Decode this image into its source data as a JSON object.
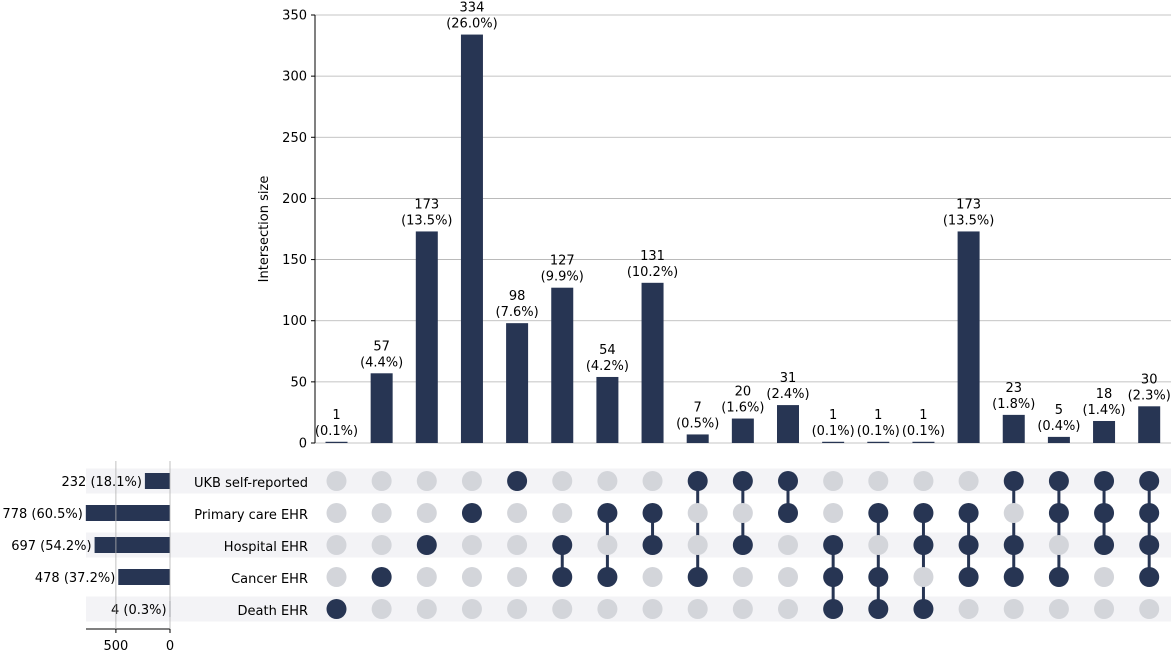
{
  "chart_data": {
    "type": "upset",
    "ylabel": "Intersection size",
    "ylim": [
      0,
      350
    ],
    "yticks": [
      0,
      50,
      100,
      150,
      200,
      250,
      300,
      350
    ],
    "grid": true,
    "sets": [
      {
        "name": "UKB self-reported",
        "label": "232 (18.1%)",
        "size": 232
      },
      {
        "name": "Primary care EHR",
        "label": "778 (60.5%)",
        "size": 778
      },
      {
        "name": "Hospital EHR",
        "label": "697 (54.2%)",
        "size": 697
      },
      {
        "name": "Cancer EHR",
        "label": "478 (37.2%)",
        "size": 478
      },
      {
        "name": "Death EHR",
        "label": "4 (0.3%)",
        "size": 4
      }
    ],
    "set_size_ticks": [
      500,
      0
    ],
    "intersections": [
      {
        "value": 1,
        "count_label": "1",
        "pct_label": "(0.1%)",
        "members": [
          4
        ]
      },
      {
        "value": 57,
        "count_label": "57",
        "pct_label": "(4.4%)",
        "members": [
          3
        ]
      },
      {
        "value": 173,
        "count_label": "173",
        "pct_label": "(13.5%)",
        "members": [
          2
        ]
      },
      {
        "value": 334,
        "count_label": "334",
        "pct_label": "(26.0%)",
        "members": [
          1
        ]
      },
      {
        "value": 98,
        "count_label": "98",
        "pct_label": "(7.6%)",
        "members": [
          0
        ]
      },
      {
        "value": 127,
        "count_label": "127",
        "pct_label": "(9.9%)",
        "members": [
          2,
          3
        ]
      },
      {
        "value": 54,
        "count_label": "54",
        "pct_label": "(4.2%)",
        "members": [
          1,
          3
        ]
      },
      {
        "value": 131,
        "count_label": "131",
        "pct_label": "(10.2%)",
        "members": [
          1,
          2
        ]
      },
      {
        "value": 7,
        "count_label": "7",
        "pct_label": "(0.5%)",
        "members": [
          0,
          3
        ]
      },
      {
        "value": 20,
        "count_label": "20",
        "pct_label": "(1.6%)",
        "members": [
          0,
          2
        ]
      },
      {
        "value": 31,
        "count_label": "31",
        "pct_label": "(2.4%)",
        "members": [
          0,
          1
        ]
      },
      {
        "value": 1,
        "count_label": "1",
        "pct_label": "(0.1%)",
        "members": [
          2,
          3,
          4
        ]
      },
      {
        "value": 1,
        "count_label": "1",
        "pct_label": "(0.1%)",
        "members": [
          1,
          3,
          4
        ]
      },
      {
        "value": 1,
        "count_label": "1",
        "pct_label": "(0.1%)",
        "members": [
          1,
          2,
          4
        ]
      },
      {
        "value": 173,
        "count_label": "173",
        "pct_label": "(13.5%)",
        "members": [
          1,
          2,
          3
        ]
      },
      {
        "value": 23,
        "count_label": "23",
        "pct_label": "(1.8%)",
        "members": [
          0,
          2,
          3
        ]
      },
      {
        "value": 5,
        "count_label": "5",
        "pct_label": "(0.4%)",
        "members": [
          0,
          1,
          3
        ]
      },
      {
        "value": 18,
        "count_label": "18",
        "pct_label": "(1.4%)",
        "members": [
          0,
          1,
          2
        ]
      },
      {
        "value": 30,
        "count_label": "30",
        "pct_label": "(2.3%)",
        "members": [
          0,
          1,
          2,
          3
        ]
      }
    ],
    "colors": {
      "bar": "#273553",
      "dot_active": "#273553",
      "dot_inactive": "#d3d5da",
      "stripe": "#f3f3f6",
      "grid": "#b0b0b0"
    }
  }
}
